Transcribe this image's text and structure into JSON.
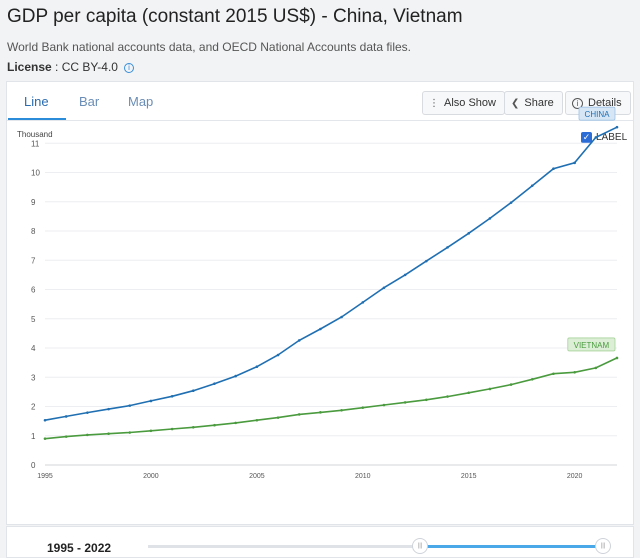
{
  "header": {
    "title": "GDP per capita (constant 2015 US$) - China, Vietnam",
    "source": "World Bank national accounts data, and OECD National Accounts data files.",
    "license_label": "License",
    "license_sep": " : ",
    "license_value": "CC BY-4.0"
  },
  "tabs": [
    {
      "label": "Line",
      "active": true
    },
    {
      "label": "Bar",
      "active": false
    },
    {
      "label": "Map",
      "active": false
    }
  ],
  "actions": {
    "also_show": "Also Show",
    "share": "Share",
    "details": "Details"
  },
  "label_toggle": {
    "label": "LABEL",
    "checked": true
  },
  "range": {
    "text": "1995 - 2022"
  },
  "colors": {
    "china": "#1f6fb2",
    "vietnam": "#4a9a3e",
    "accent": "#2b8cd9"
  },
  "chart_data": {
    "type": "line",
    "ylabel": "Thousand",
    "xlim": [
      1995,
      2022
    ],
    "ylim": [
      0,
      12
    ],
    "yticks": [
      0,
      1,
      2,
      3,
      4,
      5,
      6,
      7,
      8,
      9,
      10,
      11
    ],
    "xticks": [
      1995,
      2000,
      2005,
      2010,
      2015,
      2020
    ],
    "legend": "end-of-line labels",
    "grid": "horizontal",
    "x": [
      1995,
      1996,
      1997,
      1998,
      1999,
      2000,
      2001,
      2002,
      2003,
      2004,
      2005,
      2006,
      2007,
      2008,
      2009,
      2010,
      2011,
      2012,
      2013,
      2014,
      2015,
      2016,
      2017,
      2018,
      2019,
      2020,
      2021,
      2022
    ],
    "series": [
      {
        "name": "CHINA",
        "values": [
          1.53,
          1.66,
          1.79,
          1.91,
          2.03,
          2.19,
          2.35,
          2.54,
          2.78,
          3.04,
          3.36,
          3.76,
          4.26,
          4.65,
          5.06,
          5.56,
          6.06,
          6.5,
          6.97,
          7.44,
          7.92,
          8.43,
          8.97,
          9.55,
          10.13,
          10.33,
          11.2,
          11.55
        ]
      },
      {
        "name": "VIETNAM",
        "values": [
          0.9,
          0.97,
          1.03,
          1.07,
          1.11,
          1.17,
          1.23,
          1.29,
          1.36,
          1.44,
          1.53,
          1.62,
          1.73,
          1.8,
          1.87,
          1.96,
          2.05,
          2.14,
          2.23,
          2.34,
          2.47,
          2.6,
          2.75,
          2.93,
          3.12,
          3.17,
          3.32,
          3.66
        ]
      }
    ]
  }
}
